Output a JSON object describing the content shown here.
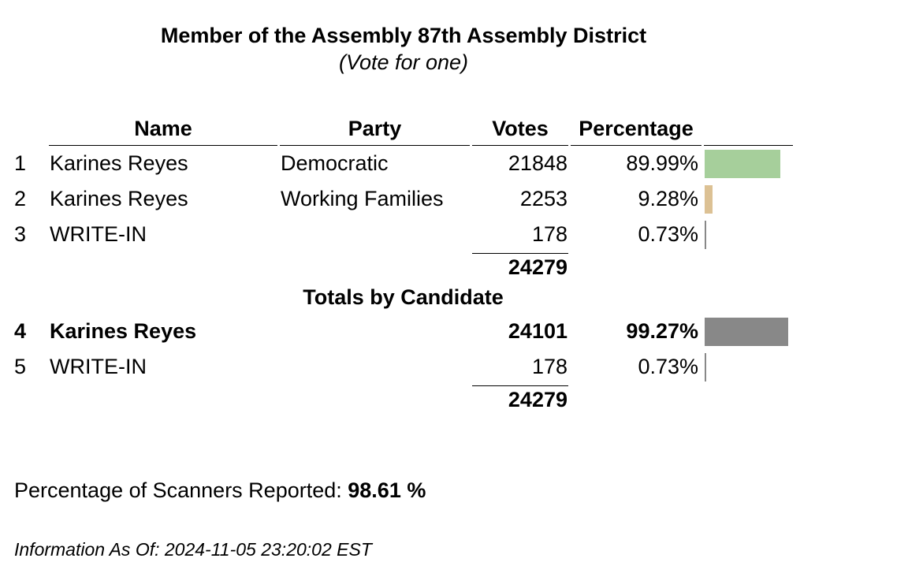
{
  "contest": {
    "title": "Member of the Assembly 87th Assembly District",
    "subtitle": "(Vote for one)"
  },
  "table_headers": {
    "name": "Name",
    "party": "Party",
    "votes": "Votes",
    "percentage": "Percentage"
  },
  "rows": [
    {
      "num": "1",
      "name": "Karines Reyes",
      "party": "Democratic",
      "votes": "21848",
      "percentage": "89.99%",
      "pct_value": 89.99,
      "bar_color": "#a6cf9b"
    },
    {
      "num": "2",
      "name": "Karines Reyes",
      "party": "Working Families",
      "votes": "2253",
      "percentage": "9.28%",
      "pct_value": 9.28,
      "bar_color": "#dcc194"
    },
    {
      "num": "3",
      "name": "WRITE-IN",
      "party": "",
      "votes": "178",
      "percentage": "0.73%",
      "pct_value": 0.73,
      "bar_color": "#888888"
    }
  ],
  "total_votes": "24279",
  "totals_by_candidate_label": "Totals by Candidate",
  "candidate_rows": [
    {
      "num": "4",
      "name": "Karines Reyes",
      "votes": "24101",
      "percentage": "99.27%",
      "pct_value": 99.27,
      "bar_color": "#888888"
    },
    {
      "num": "5",
      "name": "WRITE-IN",
      "votes": "178",
      "percentage": "0.73%",
      "pct_value": 0.73,
      "bar_color": "#888888"
    }
  ],
  "candidate_total_votes": "24279",
  "footer": {
    "scanners_label": "Percentage of Scanners Reported: ",
    "scanners_value": "98.61 %",
    "info_label": "Information As Of: 2024-11-05 23:20:02 EST"
  }
}
